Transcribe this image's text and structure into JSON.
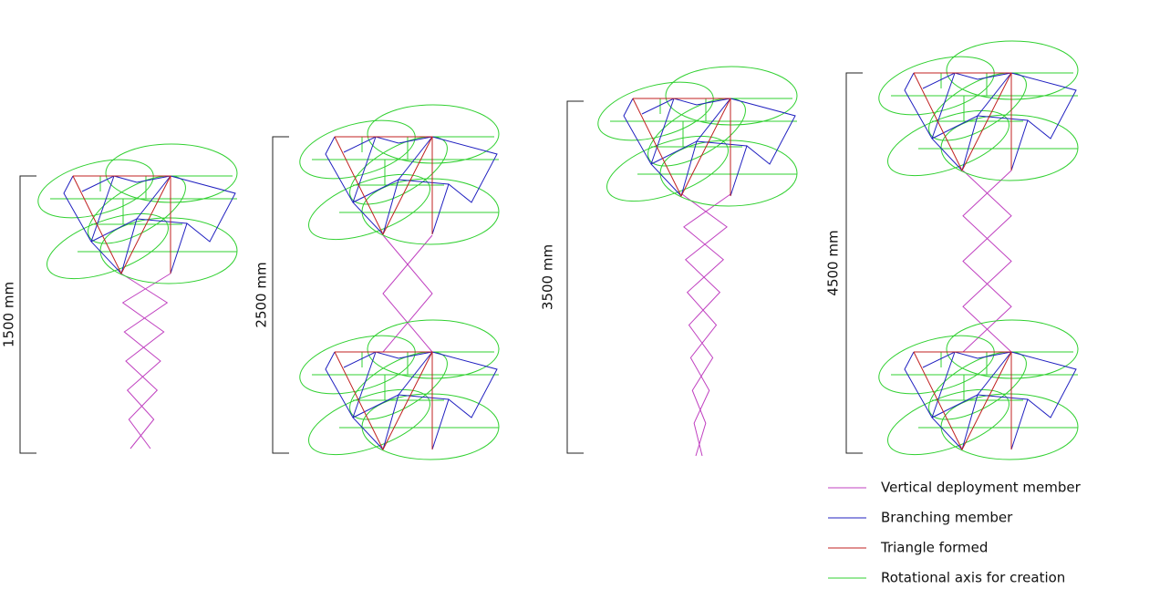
{
  "structures": [
    {
      "height_label": "1500 mm"
    },
    {
      "height_label": "2500 mm"
    },
    {
      "height_label": "3500 mm"
    },
    {
      "height_label": "4500 mm"
    }
  ],
  "legend": [
    {
      "label": "Vertical deployment member",
      "color": "#c040c0"
    },
    {
      "label": "Branching member",
      "color": "#2020c0"
    },
    {
      "label": "Triangle formed",
      "color": "#c02020"
    },
    {
      "label": "Rotational axis for creation",
      "color": "#30d030"
    }
  ]
}
